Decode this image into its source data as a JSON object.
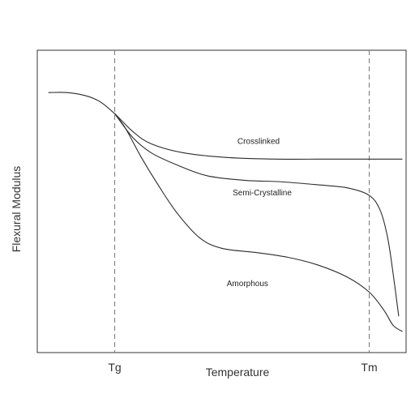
{
  "chart_data": {
    "type": "line",
    "title": "",
    "xlabel": "Temperature",
    "ylabel": "Flexural Modulus",
    "xlim": [
      0,
      100
    ],
    "ylim": [
      0,
      100
    ],
    "grid": false,
    "x_ticks": [
      {
        "label": "Tg",
        "value": 21
      },
      {
        "label": "Tm",
        "value": 90
      }
    ],
    "reference_lines": [
      {
        "axis": "x",
        "value": 21,
        "style": "dashed"
      },
      {
        "axis": "x",
        "value": 90,
        "style": "dashed"
      }
    ],
    "series": [
      {
        "name": "Crosslinked",
        "label_at": {
          "x": 60,
          "y": 69
        },
        "points": [
          [
            3,
            86
          ],
          [
            8,
            86
          ],
          [
            13,
            85
          ],
          [
            17,
            83
          ],
          [
            21,
            79
          ],
          [
            26,
            73
          ],
          [
            31,
            69
          ],
          [
            40,
            66
          ],
          [
            52,
            64.5
          ],
          [
            65,
            64
          ],
          [
            80,
            64
          ],
          [
            90,
            64
          ],
          [
            99,
            64
          ]
        ]
      },
      {
        "name": "Semi-Crystalline",
        "label_at": {
          "x": 61,
          "y": 52
        },
        "points": [
          [
            21,
            79
          ],
          [
            26,
            71
          ],
          [
            31,
            66
          ],
          [
            38,
            62
          ],
          [
            46,
            58.5
          ],
          [
            56,
            57
          ],
          [
            66,
            56.5
          ],
          [
            76,
            55.5
          ],
          [
            84,
            54.5
          ],
          [
            90,
            52
          ],
          [
            93,
            47
          ],
          [
            95,
            38
          ],
          [
            96.5,
            26
          ],
          [
            98,
            12
          ]
        ]
      },
      {
        "name": "Amorphous",
        "label_at": {
          "x": 57,
          "y": 22
        },
        "points": [
          [
            21,
            79
          ],
          [
            24,
            74
          ],
          [
            28,
            65
          ],
          [
            33,
            55
          ],
          [
            38,
            46
          ],
          [
            44,
            38
          ],
          [
            50,
            34.5
          ],
          [
            60,
            33
          ],
          [
            68,
            31.5
          ],
          [
            76,
            29
          ],
          [
            84,
            25
          ],
          [
            90,
            20
          ],
          [
            94,
            14
          ],
          [
            96.5,
            9
          ],
          [
            99,
            7
          ]
        ]
      }
    ]
  }
}
